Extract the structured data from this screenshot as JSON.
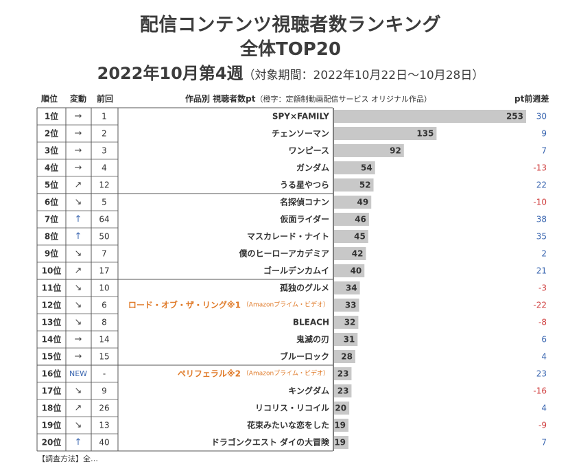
{
  "title_line1": "配信コンテンツ視聴者数ランキング",
  "title_line2": "全体TOP20",
  "title_period_main": "2022年10月第4週",
  "title_period_sub": "（対象期間：2022年10月22日～10月28日）",
  "headers": {
    "rank": "順位",
    "change": "変動",
    "prev": "前回",
    "title": "作品別 視聴者数pt",
    "title_note": "（橙字：定額制動画配信サービス オリジナル作品）",
    "diff": "pt前週差"
  },
  "colors": {
    "bar": "#c8c8c8",
    "original": "#e07b2a",
    "positive": "#3a66b0",
    "negative": "#d04040",
    "arrow_up": "#3a66b0",
    "grid": "#555555"
  },
  "footer_partial": "【調査方法】全…",
  "chart_data": {
    "type": "bar",
    "orientation": "horizontal",
    "xlim": [
      0,
      260
    ],
    "series": [
      {
        "name": "視聴者数pt",
        "values": [
          253,
          135,
          92,
          54,
          52,
          49,
          46,
          45,
          42,
          40,
          34,
          33,
          32,
          31,
          28,
          23,
          23,
          20,
          19,
          19
        ]
      }
    ],
    "rows": [
      {
        "rank": "1位",
        "change": "→",
        "prev": "1",
        "title": "SPY×FAMILY",
        "value": 253,
        "diff": "30",
        "original": false
      },
      {
        "rank": "2位",
        "change": "→",
        "prev": "2",
        "title": "チェンソーマン",
        "value": 135,
        "diff": "9",
        "original": false
      },
      {
        "rank": "3位",
        "change": "→",
        "prev": "3",
        "title": "ワンピース",
        "value": 92,
        "diff": "7",
        "original": false
      },
      {
        "rank": "4位",
        "change": "→",
        "prev": "4",
        "title": "ガンダム",
        "value": 54,
        "diff": "-13",
        "original": false
      },
      {
        "rank": "5位",
        "change": "↗",
        "prev": "12",
        "title": "うる星やつら",
        "value": 52,
        "diff": "22",
        "original": false
      },
      {
        "rank": "6位",
        "change": "↘",
        "prev": "5",
        "title": "名探偵コナン",
        "value": 49,
        "diff": "-10",
        "original": false
      },
      {
        "rank": "7位",
        "change": "↑",
        "prev": "64",
        "title": "仮面ライダー",
        "value": 46,
        "diff": "38",
        "original": false
      },
      {
        "rank": "8位",
        "change": "↑",
        "prev": "50",
        "title": "マスカレード・ナイト",
        "value": 45,
        "diff": "35",
        "original": false
      },
      {
        "rank": "9位",
        "change": "↘",
        "prev": "7",
        "title": "僕のヒーローアカデミア",
        "value": 42,
        "diff": "2",
        "original": false
      },
      {
        "rank": "10位",
        "change": "↗",
        "prev": "17",
        "title": "ゴールデンカムイ",
        "value": 40,
        "diff": "21",
        "original": false
      },
      {
        "rank": "11位",
        "change": "↘",
        "prev": "10",
        "title": "孤独のグルメ",
        "value": 34,
        "diff": "-3",
        "original": false
      },
      {
        "rank": "12位",
        "change": "↘",
        "prev": "6",
        "title": "ロード・オブ・ザ・リング※1",
        "service": "（Amazonプライム・ビデオ）",
        "value": 33,
        "diff": "-22",
        "original": true
      },
      {
        "rank": "13位",
        "change": "↘",
        "prev": "8",
        "title": "BLEACH",
        "value": 32,
        "diff": "-8",
        "original": false
      },
      {
        "rank": "14位",
        "change": "→",
        "prev": "14",
        "title": "鬼滅の刃",
        "value": 31,
        "diff": "6",
        "original": false
      },
      {
        "rank": "15位",
        "change": "→",
        "prev": "15",
        "title": "ブルーロック",
        "value": 28,
        "diff": "4",
        "original": false
      },
      {
        "rank": "16位",
        "change": "NEW",
        "prev": "-",
        "title": "ペリフェラル※2",
        "service": "（Amazonプライム・ビデオ）",
        "value": 23,
        "diff": "23",
        "original": true
      },
      {
        "rank": "17位",
        "change": "↘",
        "prev": "9",
        "title": "キングダム",
        "value": 23,
        "diff": "-16",
        "original": false
      },
      {
        "rank": "18位",
        "change": "↗",
        "prev": "26",
        "title": "リコリス・リコイル",
        "value": 20,
        "diff": "4",
        "original": false
      },
      {
        "rank": "19位",
        "change": "↘",
        "prev": "13",
        "title": "花束みたいな恋をした",
        "value": 19,
        "diff": "-9",
        "original": false
      },
      {
        "rank": "20位",
        "change": "↑",
        "prev": "40",
        "title": "ドラゴンクエスト ダイの大冒険",
        "value": 19,
        "diff": "7",
        "original": false
      }
    ]
  }
}
